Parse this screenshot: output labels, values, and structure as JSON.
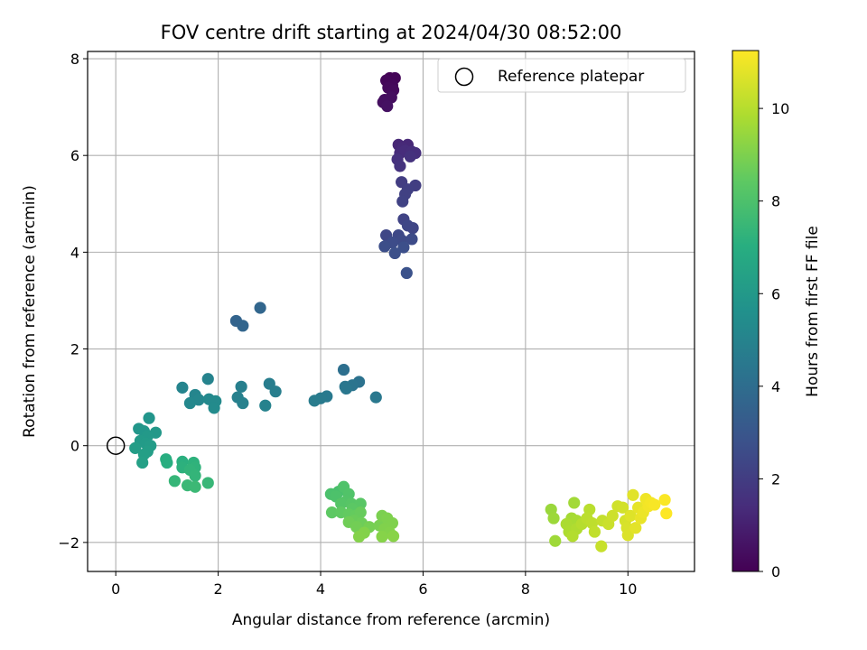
{
  "chart_data": {
    "type": "scatter",
    "title": "FOV centre drift starting at 2024/04/30 08:52:00",
    "xlabel": "Angular distance from reference (arcmin)",
    "ylabel": "Rotation from reference (arcmin)",
    "xlim": [
      -0.55,
      11.3
    ],
    "ylim": [
      -2.6,
      8.15
    ],
    "xticks": [
      "0",
      "2",
      "4",
      "6",
      "8",
      "10"
    ],
    "yticks": [
      "−2",
      "0",
      "2",
      "4",
      "6",
      "8"
    ],
    "grid": true,
    "legend": {
      "position": "top-right",
      "entries": [
        "Reference platepar"
      ]
    },
    "colorbar": {
      "label": "Hours from first FF file",
      "range": [
        0,
        11.25
      ],
      "ticks": [
        "0",
        "2",
        "4",
        "6",
        "8",
        "10"
      ],
      "colormap": "viridis"
    },
    "reference_point": {
      "x": 0,
      "y": 0
    },
    "points": [
      {
        "x": 5.35,
        "y": 7.6,
        "h": 0.0
      },
      {
        "x": 5.45,
        "y": 7.6,
        "h": 0.1
      },
      {
        "x": 5.28,
        "y": 7.55,
        "h": 0.15
      },
      {
        "x": 5.4,
        "y": 7.45,
        "h": 0.2
      },
      {
        "x": 5.32,
        "y": 7.4,
        "h": 0.25
      },
      {
        "x": 5.42,
        "y": 7.35,
        "h": 0.3
      },
      {
        "x": 5.25,
        "y": 7.15,
        "h": 0.35
      },
      {
        "x": 5.38,
        "y": 7.2,
        "h": 0.4
      },
      {
        "x": 5.22,
        "y": 7.1,
        "h": 0.45
      },
      {
        "x": 5.3,
        "y": 7.02,
        "h": 0.5
      },
      {
        "x": 5.52,
        "y": 6.22,
        "h": 1.2
      },
      {
        "x": 5.7,
        "y": 6.22,
        "h": 1.25
      },
      {
        "x": 5.6,
        "y": 6.15,
        "h": 1.3
      },
      {
        "x": 5.55,
        "y": 6.05,
        "h": 1.35
      },
      {
        "x": 5.65,
        "y": 6.1,
        "h": 1.4
      },
      {
        "x": 5.78,
        "y": 6.08,
        "h": 1.45
      },
      {
        "x": 5.85,
        "y": 6.05,
        "h": 1.5
      },
      {
        "x": 5.5,
        "y": 5.92,
        "h": 1.55
      },
      {
        "x": 5.75,
        "y": 5.98,
        "h": 1.6
      },
      {
        "x": 5.55,
        "y": 5.78,
        "h": 1.65
      },
      {
        "x": 5.58,
        "y": 5.45,
        "h": 2.0
      },
      {
        "x": 5.85,
        "y": 5.38,
        "h": 2.05
      },
      {
        "x": 5.7,
        "y": 5.3,
        "h": 2.1
      },
      {
        "x": 5.65,
        "y": 5.2,
        "h": 2.15
      },
      {
        "x": 5.6,
        "y": 5.05,
        "h": 2.2
      },
      {
        "x": 5.62,
        "y": 4.68,
        "h": 2.25
      },
      {
        "x": 5.8,
        "y": 4.5,
        "h": 2.3
      },
      {
        "x": 5.7,
        "y": 4.55,
        "h": 2.35
      },
      {
        "x": 5.28,
        "y": 4.35,
        "h": 2.4
      },
      {
        "x": 5.52,
        "y": 4.35,
        "h": 2.45
      },
      {
        "x": 5.58,
        "y": 4.25,
        "h": 2.5
      },
      {
        "x": 5.78,
        "y": 4.27,
        "h": 2.55
      },
      {
        "x": 5.4,
        "y": 4.2,
        "h": 2.6
      },
      {
        "x": 5.25,
        "y": 4.12,
        "h": 2.65
      },
      {
        "x": 5.62,
        "y": 4.1,
        "h": 2.7
      },
      {
        "x": 5.45,
        "y": 3.98,
        "h": 2.75
      },
      {
        "x": 5.68,
        "y": 3.57,
        "h": 2.8
      },
      {
        "x": 2.35,
        "y": 2.58,
        "h": 3.6
      },
      {
        "x": 2.48,
        "y": 2.48,
        "h": 3.65
      },
      {
        "x": 2.82,
        "y": 2.85,
        "h": 3.7
      },
      {
        "x": 4.45,
        "y": 1.57,
        "h": 4.1
      },
      {
        "x": 4.75,
        "y": 1.32,
        "h": 4.2
      },
      {
        "x": 4.62,
        "y": 1.25,
        "h": 4.3
      },
      {
        "x": 4.48,
        "y": 1.22,
        "h": 4.4
      },
      {
        "x": 4.5,
        "y": 1.18,
        "h": 4.45
      },
      {
        "x": 5.08,
        "y": 1.0,
        "h": 4.5
      },
      {
        "x": 4.12,
        "y": 1.02,
        "h": 4.55
      },
      {
        "x": 4.0,
        "y": 0.98,
        "h": 4.6
      },
      {
        "x": 3.88,
        "y": 0.93,
        "h": 4.65
      },
      {
        "x": 3.0,
        "y": 1.28,
        "h": 4.7
      },
      {
        "x": 3.12,
        "y": 1.12,
        "h": 4.75
      },
      {
        "x": 2.45,
        "y": 1.22,
        "h": 4.8
      },
      {
        "x": 2.38,
        "y": 1.0,
        "h": 4.85
      },
      {
        "x": 2.48,
        "y": 0.88,
        "h": 4.9
      },
      {
        "x": 2.92,
        "y": 0.83,
        "h": 4.95
      },
      {
        "x": 1.8,
        "y": 1.38,
        "h": 5.0
      },
      {
        "x": 1.3,
        "y": 1.2,
        "h": 5.05
      },
      {
        "x": 1.55,
        "y": 1.05,
        "h": 5.1
      },
      {
        "x": 1.62,
        "y": 0.95,
        "h": 5.15
      },
      {
        "x": 1.45,
        "y": 0.88,
        "h": 5.2
      },
      {
        "x": 1.82,
        "y": 0.96,
        "h": 5.25
      },
      {
        "x": 1.95,
        "y": 0.92,
        "h": 5.3
      },
      {
        "x": 1.92,
        "y": 0.78,
        "h": 5.35
      },
      {
        "x": 0.65,
        "y": 0.57,
        "h": 5.8
      },
      {
        "x": 0.45,
        "y": 0.35,
        "h": 5.85
      },
      {
        "x": 0.55,
        "y": 0.3,
        "h": 5.9
      },
      {
        "x": 0.78,
        "y": 0.27,
        "h": 5.95
      },
      {
        "x": 0.62,
        "y": 0.2,
        "h": 6.0
      },
      {
        "x": 0.48,
        "y": 0.1,
        "h": 6.05
      },
      {
        "x": 0.58,
        "y": 0.05,
        "h": 6.1
      },
      {
        "x": 0.68,
        "y": 0.0,
        "h": 6.15
      },
      {
        "x": 0.38,
        "y": -0.05,
        "h": 6.2
      },
      {
        "x": 0.62,
        "y": -0.12,
        "h": 6.25
      },
      {
        "x": 0.55,
        "y": -0.18,
        "h": 6.3
      },
      {
        "x": 0.52,
        "y": -0.35,
        "h": 6.35
      },
      {
        "x": 0.98,
        "y": -0.28,
        "h": 7.0
      },
      {
        "x": 1.0,
        "y": -0.35,
        "h": 7.05
      },
      {
        "x": 1.3,
        "y": -0.33,
        "h": 7.1
      },
      {
        "x": 1.3,
        "y": -0.45,
        "h": 7.15
      },
      {
        "x": 1.52,
        "y": -0.35,
        "h": 7.2
      },
      {
        "x": 1.55,
        "y": -0.45,
        "h": 7.25
      },
      {
        "x": 1.45,
        "y": -0.5,
        "h": 7.3
      },
      {
        "x": 1.55,
        "y": -0.62,
        "h": 7.35
      },
      {
        "x": 1.15,
        "y": -0.73,
        "h": 7.4
      },
      {
        "x": 1.8,
        "y": -0.77,
        "h": 7.45
      },
      {
        "x": 1.4,
        "y": -0.82,
        "h": 7.5
      },
      {
        "x": 1.55,
        "y": -0.85,
        "h": 7.55
      },
      {
        "x": 4.35,
        "y": -0.95,
        "h": 7.9
      },
      {
        "x": 4.2,
        "y": -1.0,
        "h": 7.95
      },
      {
        "x": 4.3,
        "y": -1.05,
        "h": 8.0
      },
      {
        "x": 4.45,
        "y": -0.85,
        "h": 8.05
      },
      {
        "x": 4.55,
        "y": -1.0,
        "h": 8.1
      },
      {
        "x": 4.5,
        "y": -1.15,
        "h": 8.15
      },
      {
        "x": 4.4,
        "y": -1.2,
        "h": 8.2
      },
      {
        "x": 4.6,
        "y": -1.2,
        "h": 8.25
      },
      {
        "x": 4.78,
        "y": -1.2,
        "h": 8.3
      },
      {
        "x": 4.62,
        "y": -1.3,
        "h": 8.35
      },
      {
        "x": 4.22,
        "y": -1.38,
        "h": 8.4
      },
      {
        "x": 4.4,
        "y": -1.38,
        "h": 8.45
      },
      {
        "x": 4.55,
        "y": -1.42,
        "h": 8.5
      },
      {
        "x": 4.68,
        "y": -1.45,
        "h": 8.55
      },
      {
        "x": 4.78,
        "y": -1.38,
        "h": 8.6
      },
      {
        "x": 4.65,
        "y": -1.55,
        "h": 8.65
      },
      {
        "x": 4.8,
        "y": -1.6,
        "h": 8.7
      },
      {
        "x": 4.55,
        "y": -1.58,
        "h": 8.75
      },
      {
        "x": 4.7,
        "y": -1.68,
        "h": 8.8
      },
      {
        "x": 4.95,
        "y": -1.68,
        "h": 8.85
      },
      {
        "x": 5.15,
        "y": -1.65,
        "h": 8.9
      },
      {
        "x": 5.2,
        "y": -1.45,
        "h": 8.95
      },
      {
        "x": 5.3,
        "y": -1.5,
        "h": 9.0
      },
      {
        "x": 5.4,
        "y": -1.6,
        "h": 9.02
      },
      {
        "x": 5.25,
        "y": -1.72,
        "h": 9.05
      },
      {
        "x": 5.35,
        "y": -1.8,
        "h": 9.08
      },
      {
        "x": 4.85,
        "y": -1.8,
        "h": 9.1
      },
      {
        "x": 4.75,
        "y": -1.88,
        "h": 9.12
      },
      {
        "x": 5.2,
        "y": -1.88,
        "h": 9.15
      },
      {
        "x": 5.42,
        "y": -1.87,
        "h": 9.18
      },
      {
        "x": 8.5,
        "y": -1.32,
        "h": 9.5
      },
      {
        "x": 8.55,
        "y": -1.5,
        "h": 9.55
      },
      {
        "x": 8.58,
        "y": -1.97,
        "h": 9.6
      },
      {
        "x": 8.95,
        "y": -1.18,
        "h": 9.65
      },
      {
        "x": 8.9,
        "y": -1.5,
        "h": 9.7
      },
      {
        "x": 9.0,
        "y": -1.55,
        "h": 9.75
      },
      {
        "x": 8.8,
        "y": -1.62,
        "h": 9.8
      },
      {
        "x": 8.85,
        "y": -1.78,
        "h": 9.85
      },
      {
        "x": 9.0,
        "y": -1.72,
        "h": 9.9
      },
      {
        "x": 8.92,
        "y": -1.87,
        "h": 9.95
      },
      {
        "x": 9.1,
        "y": -1.62,
        "h": 10.0
      },
      {
        "x": 9.25,
        "y": -1.32,
        "h": 10.05
      },
      {
        "x": 9.2,
        "y": -1.5,
        "h": 10.1
      },
      {
        "x": 9.3,
        "y": -1.6,
        "h": 10.15
      },
      {
        "x": 9.35,
        "y": -1.78,
        "h": 10.2
      },
      {
        "x": 9.5,
        "y": -1.55,
        "h": 10.25
      },
      {
        "x": 9.48,
        "y": -2.08,
        "h": 10.3
      },
      {
        "x": 9.62,
        "y": -1.62,
        "h": 10.35
      },
      {
        "x": 9.7,
        "y": -1.45,
        "h": 10.4
      },
      {
        "x": 9.8,
        "y": -1.25,
        "h": 10.45
      },
      {
        "x": 9.9,
        "y": -1.28,
        "h": 10.5
      },
      {
        "x": 9.95,
        "y": -1.55,
        "h": 10.55
      },
      {
        "x": 9.98,
        "y": -1.7,
        "h": 10.6
      },
      {
        "x": 10.0,
        "y": -1.85,
        "h": 10.65
      },
      {
        "x": 10.05,
        "y": -1.45,
        "h": 10.7
      },
      {
        "x": 10.1,
        "y": -1.02,
        "h": 10.75
      },
      {
        "x": 10.15,
        "y": -1.7,
        "h": 10.8
      },
      {
        "x": 10.2,
        "y": -1.28,
        "h": 10.85
      },
      {
        "x": 10.25,
        "y": -1.5,
        "h": 10.9
      },
      {
        "x": 10.3,
        "y": -1.38,
        "h": 10.95
      },
      {
        "x": 10.35,
        "y": -1.1,
        "h": 11.0
      },
      {
        "x": 10.4,
        "y": -1.25,
        "h": 11.05
      },
      {
        "x": 10.45,
        "y": -1.18,
        "h": 11.1
      },
      {
        "x": 10.52,
        "y": -1.22,
        "h": 11.15
      },
      {
        "x": 10.72,
        "y": -1.12,
        "h": 11.2
      },
      {
        "x": 10.75,
        "y": -1.4,
        "h": 11.25
      }
    ]
  }
}
